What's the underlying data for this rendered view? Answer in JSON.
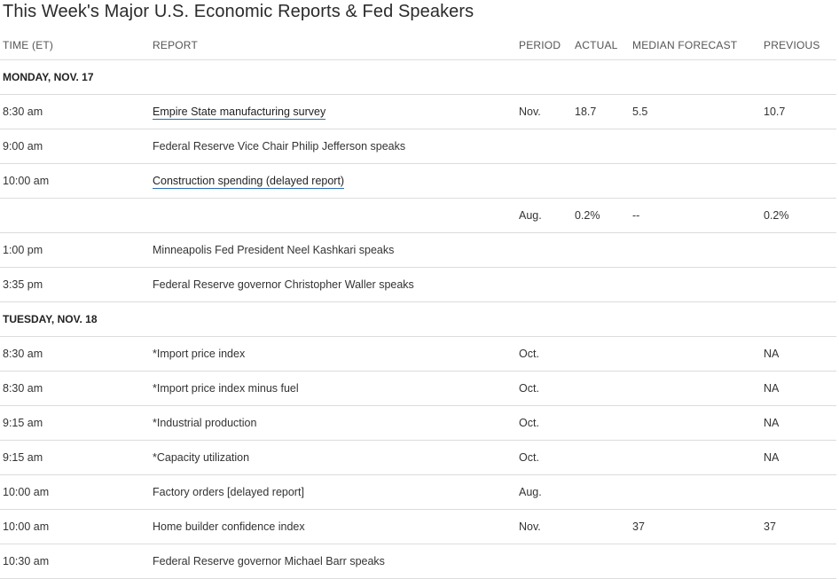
{
  "title": "This Week's Major U.S. Economic Reports & Fed Speakers",
  "columns": [
    "TIME (ET)",
    "REPORT",
    "PERIOD",
    "ACTUAL",
    "MEDIAN FORECAST",
    "PREVIOUS"
  ],
  "link_color": "#2a6db5",
  "rows": [
    {
      "type": "day",
      "label": "MONDAY, NOV. 17"
    },
    {
      "time": "8:30 am",
      "report": "Empire State manufacturing survey",
      "link": true,
      "period": "Nov.",
      "actual": "18.7",
      "forecast": "5.5",
      "previous": "10.7"
    },
    {
      "time": "9:00 am",
      "report": "Federal Reserve Vice Chair Philip Jefferson speaks"
    },
    {
      "time": "10:00 am",
      "report": "Construction spending (delayed report)",
      "link": true
    },
    {
      "time": "",
      "report": "",
      "period": "Aug.",
      "actual": "0.2%",
      "forecast": "--",
      "previous": "0.2%"
    },
    {
      "time": "1:00 pm",
      "report": "Minneapolis Fed President Neel Kashkari speaks"
    },
    {
      "time": "3:35 pm",
      "report": "Federal Reserve governor Christopher Waller speaks"
    },
    {
      "type": "day",
      "label": "TUESDAY, NOV. 18"
    },
    {
      "time": "8:30 am",
      "report": "*Import price index",
      "period": "Oct.",
      "previous": "NA"
    },
    {
      "time": "8:30 am",
      "report": "*Import price index minus fuel",
      "period": "Oct.",
      "previous": "NA"
    },
    {
      "time": "9:15 am",
      "report": "*Industrial production",
      "period": "Oct.",
      "previous": "NA"
    },
    {
      "time": "9:15 am",
      "report": "*Capacity utilization",
      "period": "Oct.",
      "previous": "NA"
    },
    {
      "time": "10:00 am",
      "report": "Factory orders [delayed report]",
      "period": "Aug."
    },
    {
      "time": "10:00 am",
      "report": "Home builder confidence index",
      "period": "Nov.",
      "forecast": "37",
      "previous": "37"
    },
    {
      "time": "10:30 am",
      "report": "Federal Reserve governor Michael Barr speaks"
    }
  ]
}
